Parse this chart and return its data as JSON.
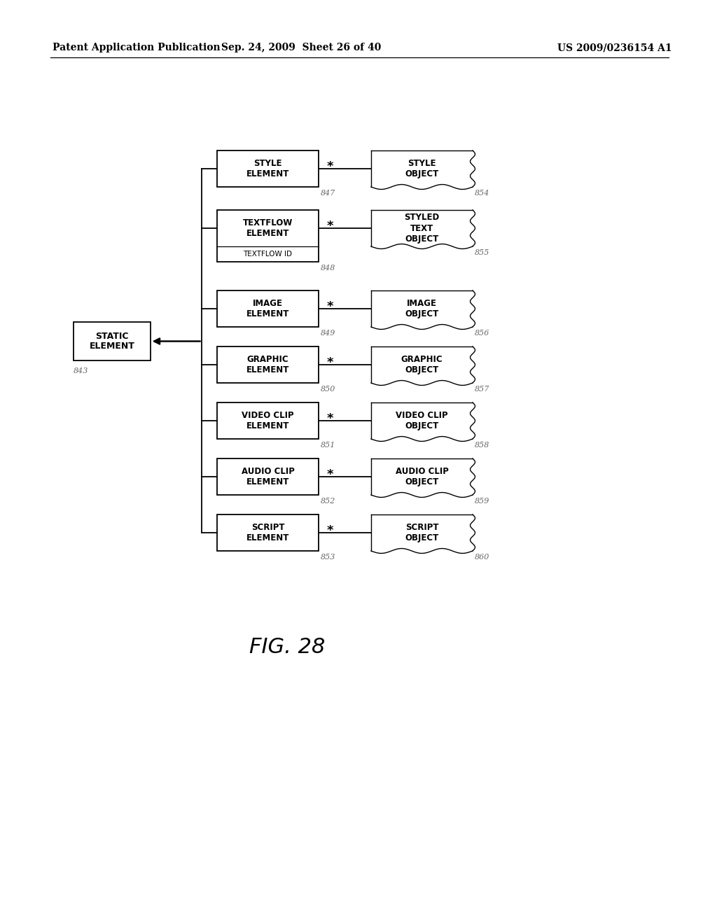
{
  "header_left": "Patent Application Publication",
  "header_mid": "Sep. 24, 2009  Sheet 26 of 40",
  "header_right": "US 2009/0236154 A1",
  "figure_label": "FIG. 28",
  "static_element_label": "STATIC\nELEMENT",
  "static_element_id": "843",
  "left_boxes": [
    {
      "label": "STYLE\nELEMENT",
      "id": "847",
      "has_extra": false,
      "extra_label": ""
    },
    {
      "label": "TEXTFLOW\nELEMENT",
      "id": "848",
      "has_extra": true,
      "extra_label": "TEXTFLOW ID"
    },
    {
      "label": "IMAGE\nELEMENT",
      "id": "849",
      "has_extra": false,
      "extra_label": ""
    },
    {
      "label": "GRAPHIC\nELEMENT",
      "id": "850",
      "has_extra": false,
      "extra_label": ""
    },
    {
      "label": "VIDEO CLIP\nELEMENT",
      "id": "851",
      "has_extra": false,
      "extra_label": ""
    },
    {
      "label": "AUDIO CLIP\nELEMENT",
      "id": "852",
      "has_extra": false,
      "extra_label": ""
    },
    {
      "label": "SCRIPT\nELEMENT",
      "id": "853",
      "has_extra": false,
      "extra_label": ""
    }
  ],
  "right_boxes": [
    {
      "label": "STYLE\nOBJECT",
      "id": "854"
    },
    {
      "label": "STYLED\nTEXT\nOBJECT",
      "id": "855"
    },
    {
      "label": "IMAGE\nOBJECT",
      "id": "856"
    },
    {
      "label": "GRAPHIC\nOBJECT",
      "id": "857"
    },
    {
      "label": "VIDEO CLIP\nOBJECT",
      "id": "858"
    },
    {
      "label": "AUDIO CLIP\nOBJECT",
      "id": "859"
    },
    {
      "label": "SCRIPT\nOBJECT",
      "id": "860"
    }
  ],
  "bg_color": "#ffffff",
  "text_color": "#000000",
  "id_color": "#666666"
}
